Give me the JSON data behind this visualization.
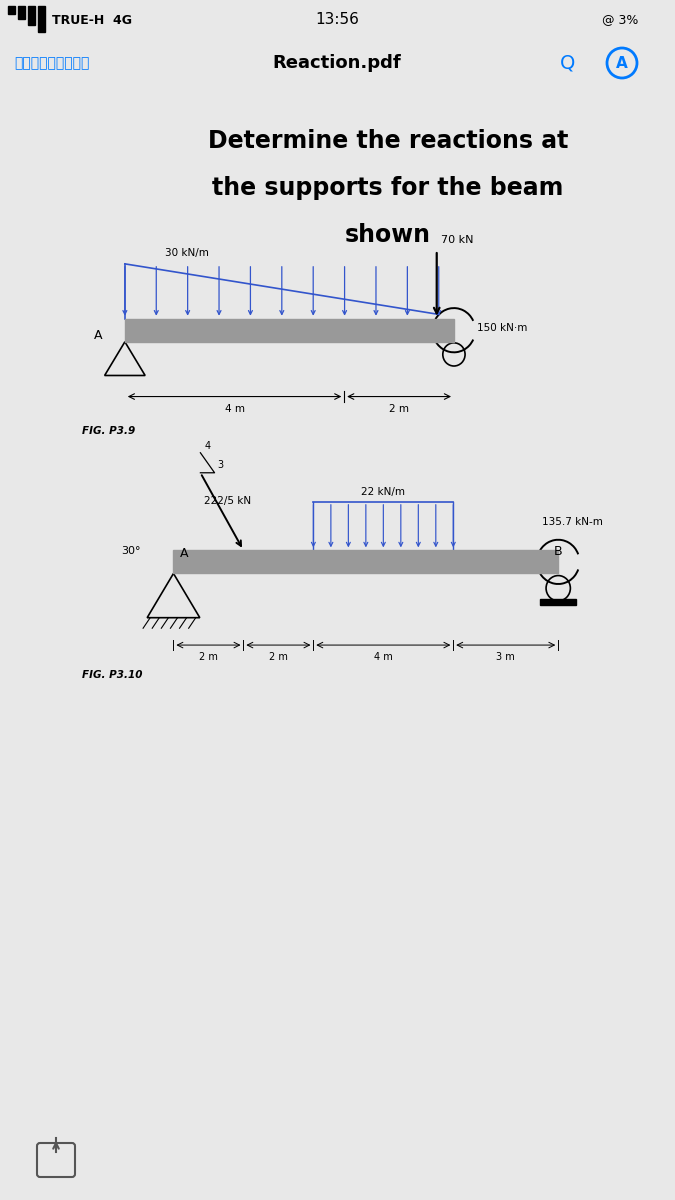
{
  "bg_color": "#e8e8e8",
  "page_bg": "#ffffff",
  "status_signal": "TRUE-H  4G",
  "status_time": "13:56",
  "status_battery": "@ 3%",
  "nav_title": "Reaction.pdf",
  "ios_blue": "#007AFF",
  "blue_color": "#3355cc",
  "gray_beam": "#999999",
  "fig1_label": "FIG. P3.9",
  "fig1_load": "30 kN/m",
  "fig1_force": "70 kN",
  "fig1_moment": "150 kN-m",
  "fig1_dim1": "4 m",
  "fig1_dim2": "2 m",
  "fig1_pinlabel": "A",
  "fig2_label": "FIG. P3.10",
  "fig2_force": "222/5 kN",
  "fig2_load": "22 kN/m",
  "fig2_moment": "135.7 kN-m",
  "fig2_angle": "30",
  "fig2_r4": "4",
  "fig2_r3": "3",
  "fig2_dim1": "2 m",
  "fig2_dim2": "2 m",
  "fig2_dim3": "4 m",
  "fig2_dim4": "3 m",
  "fig2_pinlabel": "A",
  "fig2_rollerlabel": "B"
}
